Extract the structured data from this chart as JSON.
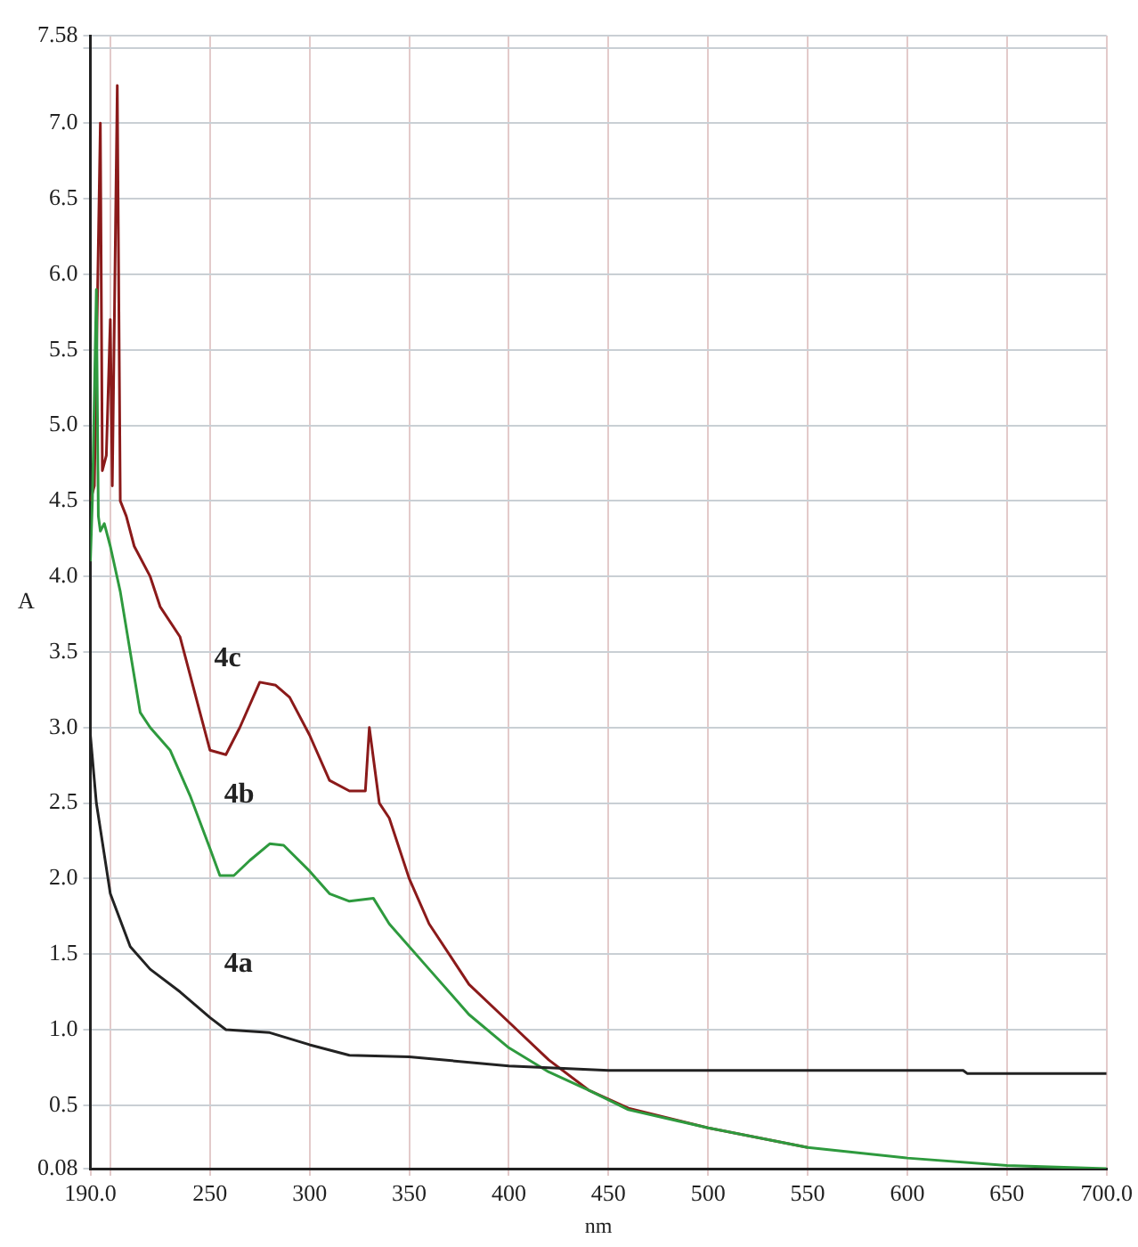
{
  "chart_data": {
    "type": "line",
    "xlabel": "nm",
    "ylabel": "A",
    "xlim": [
      190,
      700
    ],
    "xticks": [
      {
        "value": 190,
        "label": "190.0"
      },
      {
        "value": 200,
        "label": null
      },
      250,
      300,
      350,
      400,
      450,
      500,
      550,
      600,
      650,
      {
        "value": 700,
        "label": "700.0"
      }
    ],
    "ylim": [
      0.08,
      7.58
    ],
    "yticks": [
      {
        "value": 0.08,
        "label": "0.08"
      },
      {
        "value": 0.5,
        "label": "0.5"
      },
      {
        "value": 1,
        "label": "1.0"
      },
      {
        "value": 1.5,
        "label": "1.5"
      },
      {
        "value": 2,
        "label": "2.0"
      },
      {
        "value": 2.5,
        "label": "2.5"
      },
      {
        "value": 3,
        "label": "3.0"
      },
      {
        "value": 3.5,
        "label": "3.5"
      },
      {
        "value": 4,
        "label": "4.0"
      },
      {
        "value": 4.5,
        "label": "4.5"
      },
      {
        "value": 5,
        "label": "5.0"
      },
      {
        "value": 5.5,
        "label": "5.5"
      },
      {
        "value": 6,
        "label": "6.0"
      },
      {
        "value": 6.5,
        "label": "6.5"
      },
      {
        "value": 7,
        "label": "7.0"
      },
      {
        "value": 7.5,
        "label": null
      },
      {
        "value": 7.58,
        "label": "7.58"
      }
    ],
    "grid": true,
    "legend": false,
    "marker": "none",
    "line_style": "solid",
    "series": [
      {
        "name": "4a",
        "color": "#222222",
        "x": [
          190,
          193,
          200,
          210,
          220,
          235,
          250,
          258,
          280,
          300,
          320,
          350,
          400,
          450,
          550,
          628,
          630,
          700
        ],
        "values": [
          2.95,
          2.5,
          1.9,
          1.55,
          1.4,
          1.25,
          1.08,
          1.0,
          0.98,
          0.9,
          0.83,
          0.82,
          0.76,
          0.73,
          0.73,
          0.73,
          0.71,
          0.71
        ]
      },
      {
        "name": "4b",
        "color": "#2e9a3e",
        "x": [
          190,
          191,
          193,
          194,
          195,
          197,
          200,
          205,
          210,
          215,
          220,
          230,
          240,
          250,
          255,
          262,
          270,
          280,
          287,
          300,
          310,
          320,
          332,
          340,
          360,
          380,
          400,
          420,
          440,
          460,
          500,
          550,
          600,
          650,
          700
        ],
        "values": [
          4.1,
          4.5,
          5.9,
          4.4,
          4.3,
          4.35,
          4.2,
          3.9,
          3.5,
          3.1,
          3.0,
          2.85,
          2.55,
          2.2,
          2.02,
          2.02,
          2.12,
          2.23,
          2.22,
          2.05,
          1.9,
          1.85,
          1.87,
          1.7,
          1.4,
          1.1,
          0.88,
          0.72,
          0.6,
          0.47,
          0.35,
          0.22,
          0.15,
          0.1,
          0.08
        ]
      },
      {
        "name": "4c",
        "color": "#8b1a1a",
        "x": [
          190,
          192,
          195,
          196,
          198,
          200,
          201,
          203.5,
          205,
          208,
          212,
          220,
          225,
          235,
          245,
          250,
          258,
          265,
          275,
          283,
          290,
          300,
          310,
          320,
          328,
          330,
          332,
          335,
          340,
          350,
          360,
          380,
          400,
          420,
          440,
          460,
          500,
          550
        ],
        "values": [
          4.5,
          4.6,
          7.0,
          4.7,
          4.8,
          5.7,
          4.6,
          7.25,
          4.5,
          4.4,
          4.2,
          4.0,
          3.8,
          3.6,
          3.1,
          2.85,
          2.82,
          3.0,
          3.3,
          3.28,
          3.2,
          2.95,
          2.65,
          2.58,
          2.58,
          3.0,
          2.8,
          2.5,
          2.4,
          2.0,
          1.7,
          1.3,
          1.05,
          0.8,
          0.6,
          0.48,
          0.35,
          0.22
        ]
      }
    ]
  }
}
